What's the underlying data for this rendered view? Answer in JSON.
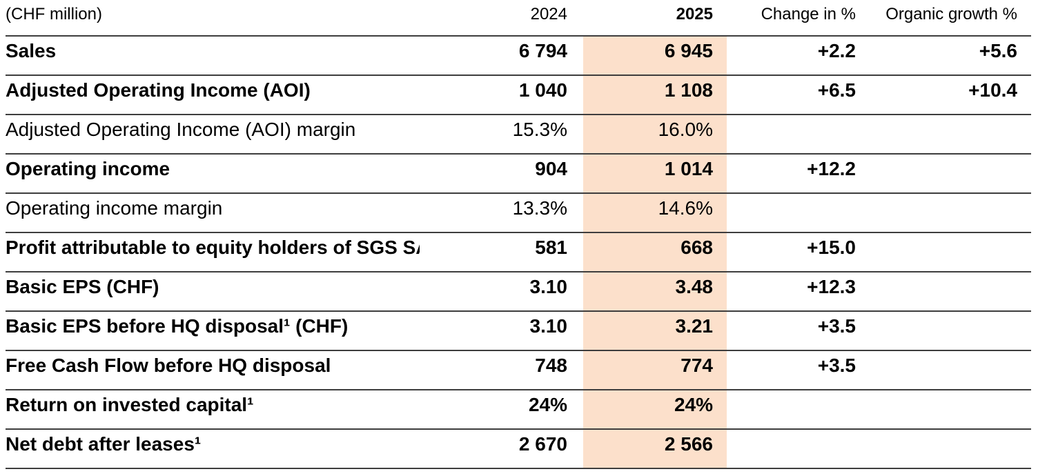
{
  "unit_label": "(CHF million)",
  "columns": [
    "2024",
    "2025",
    "Change in %",
    "Organic growth %"
  ],
  "colors": {
    "highlight_2025_column": "#fce0cb",
    "rule_line": "#3d3d3d",
    "text": "#000000",
    "background": "#ffffff"
  },
  "rows": [
    {
      "label": "Sales",
      "bold": true,
      "v2024": "6 794",
      "v2025": "6 945",
      "change": "+2.2",
      "organic": "+5.6"
    },
    {
      "label": "Adjusted Operating Income (AOI)",
      "bold": true,
      "v2024": "1 040",
      "v2025": "1 108",
      "change": "+6.5",
      "organic": "+10.4"
    },
    {
      "label": "Adjusted Operating Income (AOI) margin",
      "bold": false,
      "v2024": "15.3%",
      "v2025": "16.0%",
      "change": "",
      "organic": ""
    },
    {
      "label": "Operating income",
      "bold": true,
      "v2024": "904",
      "v2025": "1 014",
      "change": "+12.2",
      "organic": ""
    },
    {
      "label": "Operating income margin",
      "bold": false,
      "v2024": "13.3%",
      "v2025": "14.6%",
      "change": "",
      "organic": ""
    },
    {
      "label": "Profit attributable to equity holders of SGS SA",
      "bold": true,
      "v2024": "581",
      "v2025": "668",
      "change": "+15.0",
      "organic": ""
    },
    {
      "label": "Basic EPS (CHF)",
      "bold": true,
      "v2024": "3.10",
      "v2025": "3.48",
      "change": "+12.3",
      "organic": ""
    },
    {
      "label": "Basic EPS before HQ disposal¹ (CHF)",
      "bold": true,
      "v2024": "3.10",
      "v2025": "3.21",
      "change": "+3.5",
      "organic": ""
    },
    {
      "label": "Free Cash Flow before HQ disposal",
      "bold": true,
      "v2024": "748",
      "v2025": "774",
      "change": "+3.5",
      "organic": ""
    },
    {
      "label": "Return on invested capital¹",
      "bold": true,
      "v2024": "24%",
      "v2025": "24%",
      "change": "",
      "organic": ""
    },
    {
      "label": "Net debt after leases¹",
      "bold": true,
      "v2024": "2 670",
      "v2025": "2 566",
      "change": "",
      "organic": ""
    }
  ]
}
